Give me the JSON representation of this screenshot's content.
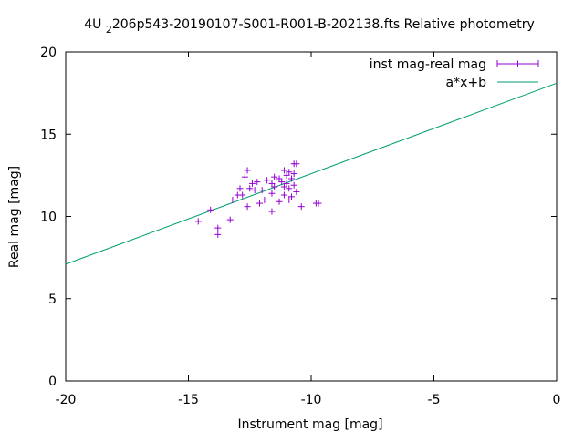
{
  "chart_data": {
    "type": "scatter",
    "title": "4U 2206p543-20190107-S001-R001-B-202138.fts Relative photometry",
    "title_parts": {
      "prefix": "4U ",
      "subscript": "2",
      "suffix": "206p543-20190107-S001-R001-B-202138.fts Relative photometry"
    },
    "xlabel": "Instrument mag [mag]",
    "ylabel": "Real mag [mag]",
    "xlim": [
      -20,
      0
    ],
    "ylim": [
      0,
      20
    ],
    "xticks": [
      -20,
      -15,
      -10,
      -5,
      0
    ],
    "yticks": [
      0,
      5,
      10,
      15,
      20
    ],
    "xtick_labels": [
      "-20",
      "-15",
      "-10",
      "-5",
      "0"
    ],
    "ytick_labels": [
      "0",
      "5",
      "10",
      "15",
      "20"
    ],
    "grid": false,
    "legend_position": "top-right",
    "series": [
      {
        "name": "inst mag-real mag",
        "type": "scatter",
        "color": "#9400d3",
        "marker": "plus",
        "points": [
          {
            "x": -14.6,
            "y": 9.7
          },
          {
            "x": -14.1,
            "y": 10.4
          },
          {
            "x": -13.8,
            "y": 9.3
          },
          {
            "x": -13.8,
            "y": 8.9
          },
          {
            "x": -13.3,
            "y": 9.8
          },
          {
            "x": -13.2,
            "y": 11.0
          },
          {
            "x": -13.0,
            "y": 11.3
          },
          {
            "x": -12.9,
            "y": 11.7
          },
          {
            "x": -12.8,
            "y": 11.3
          },
          {
            "x": -12.7,
            "y": 12.4
          },
          {
            "x": -12.6,
            "y": 12.8
          },
          {
            "x": -12.6,
            "y": 10.6
          },
          {
            "x": -12.5,
            "y": 11.7
          },
          {
            "x": -12.4,
            "y": 12.0
          },
          {
            "x": -12.3,
            "y": 11.6
          },
          {
            "x": -12.2,
            "y": 12.1
          },
          {
            "x": -12.1,
            "y": 10.8
          },
          {
            "x": -12.0,
            "y": 11.6
          },
          {
            "x": -11.9,
            "y": 11.0
          },
          {
            "x": -11.8,
            "y": 12.2
          },
          {
            "x": -11.6,
            "y": 12.0
          },
          {
            "x": -11.6,
            "y": 11.4
          },
          {
            "x": -11.6,
            "y": 10.3
          },
          {
            "x": -11.5,
            "y": 12.4
          },
          {
            "x": -11.5,
            "y": 11.8
          },
          {
            "x": -11.3,
            "y": 12.3
          },
          {
            "x": -11.3,
            "y": 10.9
          },
          {
            "x": -11.2,
            "y": 12.1
          },
          {
            "x": -11.1,
            "y": 12.8
          },
          {
            "x": -11.1,
            "y": 11.8
          },
          {
            "x": -11.1,
            "y": 11.3
          },
          {
            "x": -11.0,
            "y": 12.5
          },
          {
            "x": -11.0,
            "y": 12.0
          },
          {
            "x": -10.9,
            "y": 12.7
          },
          {
            "x": -10.9,
            "y": 11.0
          },
          {
            "x": -10.9,
            "y": 11.7
          },
          {
            "x": -10.8,
            "y": 12.3
          },
          {
            "x": -10.8,
            "y": 11.2
          },
          {
            "x": -10.7,
            "y": 12.6
          },
          {
            "x": -10.7,
            "y": 11.9
          },
          {
            "x": -10.7,
            "y": 13.2
          },
          {
            "x": -10.6,
            "y": 13.2
          },
          {
            "x": -10.6,
            "y": 11.5
          },
          {
            "x": -10.4,
            "y": 10.6
          },
          {
            "x": -9.8,
            "y": 10.8
          },
          {
            "x": -9.7,
            "y": 10.8
          }
        ]
      },
      {
        "name": "a*x+b",
        "type": "line",
        "color": "#009e73",
        "x": [
          -20,
          0
        ],
        "y": [
          7.1,
          18.1
        ]
      }
    ]
  }
}
